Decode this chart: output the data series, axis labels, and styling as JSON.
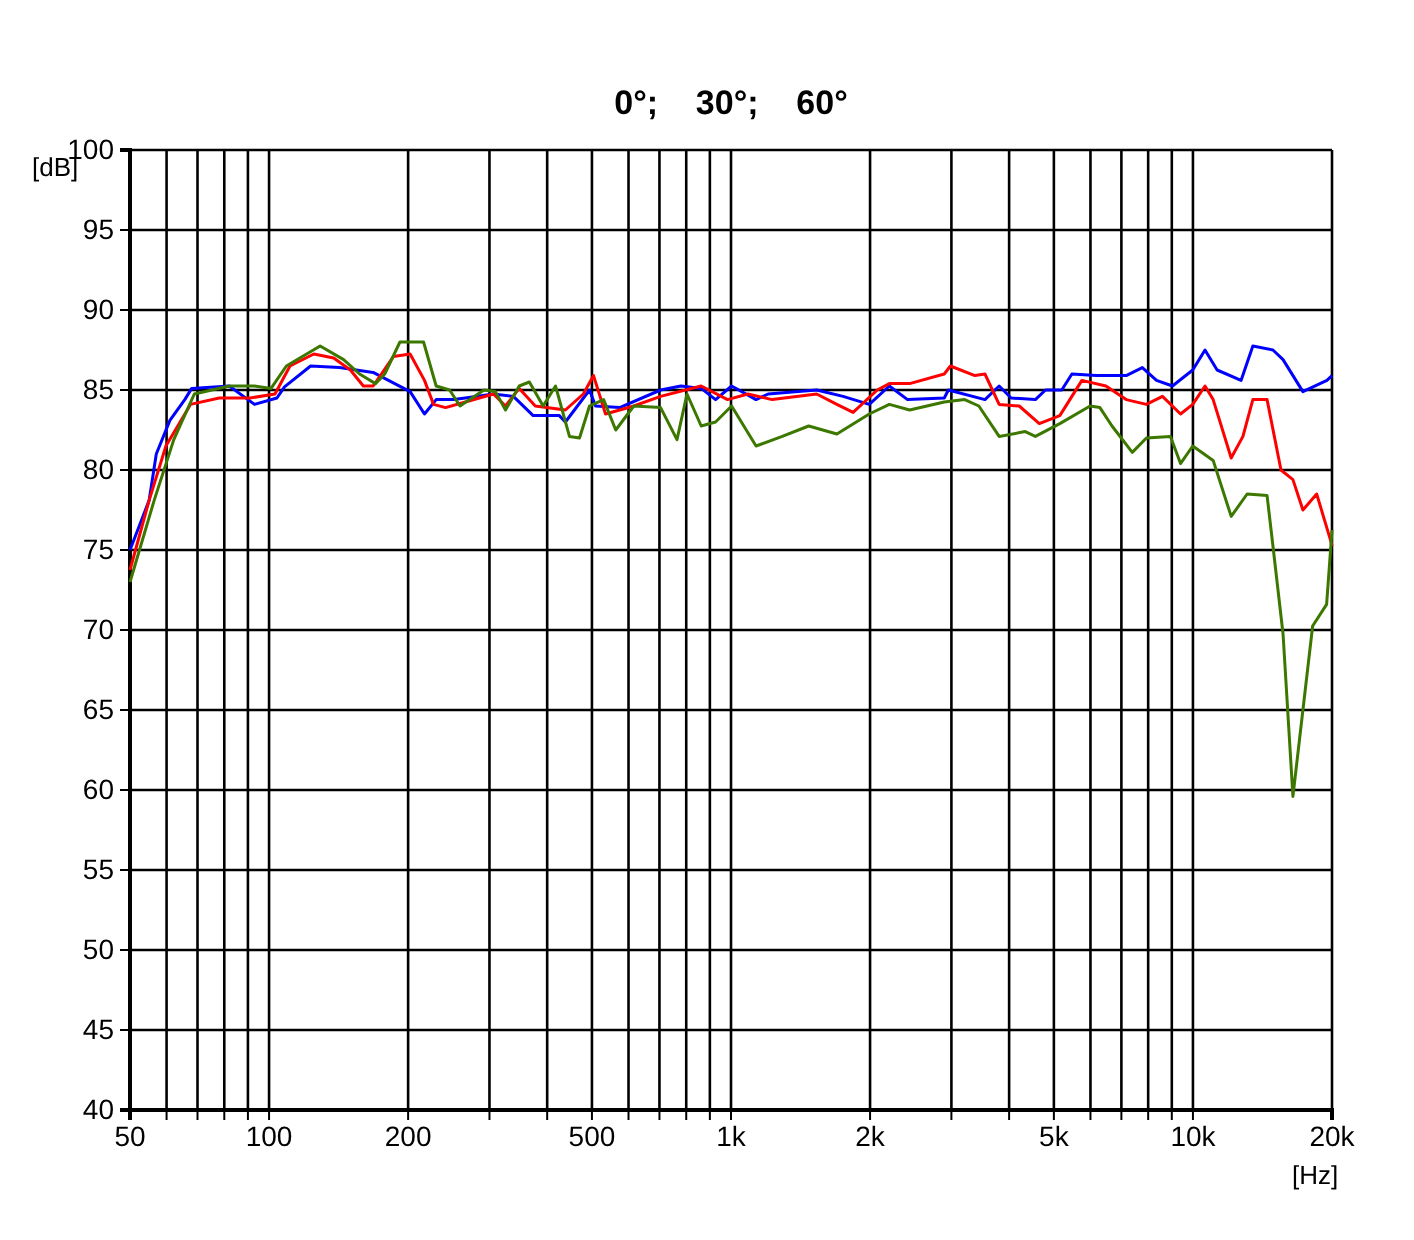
{
  "chart_data": {
    "type": "line",
    "title": "0°;    30°;    60°",
    "xlabel": "[Hz]",
    "ylabel": "[dB]",
    "log": "x",
    "grid": true,
    "xlim": [
      50,
      20000
    ],
    "ylim": [
      40,
      100
    ],
    "xticks": [
      50,
      {
        "value": 60,
        "label": null
      },
      {
        "value": 70,
        "label": null
      },
      {
        "value": 80,
        "label": null
      },
      {
        "value": 90,
        "label": null
      },
      100,
      200,
      {
        "value": 300,
        "label": null
      },
      {
        "value": 400,
        "label": null
      },
      500,
      {
        "value": 600,
        "label": null
      },
      {
        "value": 700,
        "label": null
      },
      {
        "value": 800,
        "label": null
      },
      {
        "value": 900,
        "label": null
      },
      {
        "value": 1000,
        "label": "1k"
      },
      {
        "value": 2000,
        "label": "2k"
      },
      {
        "value": 3000,
        "label": null
      },
      {
        "value": 4000,
        "label": null
      },
      {
        "value": 5000,
        "label": "5k"
      },
      {
        "value": 6000,
        "label": null
      },
      {
        "value": 7000,
        "label": null
      },
      {
        "value": 8000,
        "label": null
      },
      {
        "value": 9000,
        "label": null
      },
      {
        "value": 10000,
        "label": "10k"
      },
      {
        "value": 20000,
        "label": "20k"
      }
    ],
    "yticks": [
      40,
      45,
      50,
      55,
      60,
      65,
      70,
      75,
      80,
      85,
      90,
      95,
      100
    ],
    "series": [
      {
        "color": "#0000ff",
        "x": [
          50,
          55,
          57,
          61,
          65.7,
          68,
          82,
          93,
          104,
          108,
          123,
          142,
          168,
          202,
          217,
          230,
          251,
          266,
          306,
          338,
          373,
          425,
          438,
          494,
          509,
          574,
          704,
          779,
          862,
          926,
          1003,
          1133,
          1203,
          1533,
          1748,
          1992,
          2202,
          2411,
          2895,
          2955,
          3546,
          3806,
          4040,
          4559,
          4795,
          5200,
          5470,
          6170,
          6680,
          7170,
          7770,
          8340,
          9030,
          9990,
          10620,
          11280,
          12710,
          13480,
          14900,
          15670,
          17300,
          19500,
          20000
        ],
        "values": [
          75,
          78.1,
          81,
          83.1,
          84.4,
          85.1,
          85.25,
          84.1,
          84.5,
          85.2,
          86.5,
          86.4,
          86.1,
          84.9,
          83.5,
          84.4,
          84.4,
          84.5,
          84.75,
          84.6,
          83.4,
          83.4,
          83,
          85,
          84,
          83.9,
          85,
          85.25,
          85.1,
          84.4,
          85.25,
          84.4,
          84.75,
          85,
          84.6,
          84.1,
          85.25,
          84.4,
          84.5,
          85,
          84.4,
          85.25,
          84.5,
          84.4,
          85,
          85,
          86,
          85.9,
          85.9,
          85.9,
          86.4,
          85.6,
          85.25,
          86.25,
          87.5,
          86.25,
          85.6,
          87.75,
          87.5,
          86.9,
          84.9,
          85.6,
          85.9
        ]
      },
      {
        "color": "#ff0000",
        "x": [
          50,
          55,
          59.8,
          67.6,
          78,
          91,
          103,
          111,
          125,
          138,
          150,
          160,
          168,
          186,
          202,
          217,
          227,
          241,
          266,
          306,
          325,
          348,
          377,
          438,
          479,
          504,
          535,
          616,
          704,
          862,
          983,
          1088,
          1228,
          1533,
          1695,
          1838,
          2073,
          2202,
          2436,
          2895,
          2985,
          3372,
          3546,
          3806,
          4206,
          4650,
          5150,
          5750,
          6480,
          7170,
          7930,
          8590,
          9400,
          9990,
          10620,
          11060,
          12100,
          12830,
          13480,
          14470,
          15510,
          16460,
          17300,
          18530,
          19860,
          20000
        ],
        "values": [
          73.75,
          78.1,
          81.5,
          84.1,
          84.5,
          84.5,
          84.75,
          86.5,
          87.25,
          87,
          86.25,
          85.25,
          85.25,
          87.1,
          87.25,
          85.6,
          84.1,
          83.9,
          84.25,
          84.75,
          84,
          85.1,
          84,
          83.75,
          84.75,
          85.9,
          83.5,
          84,
          84.6,
          85.25,
          84.4,
          84.75,
          84.4,
          84.75,
          84.1,
          83.6,
          85,
          85.4,
          85.4,
          86,
          86.5,
          85.9,
          86,
          84.1,
          84,
          82.9,
          83.4,
          85.6,
          85.25,
          84.4,
          84.1,
          84.6,
          83.5,
          84.1,
          85.25,
          84.4,
          80.75,
          82.1,
          84.4,
          84.4,
          80,
          79.4,
          77.5,
          78.5,
          75.6,
          75.25
        ]
      },
      {
        "color": "#3c7800",
        "x": [
          50,
          56.4,
          62.2,
          68.9,
          82,
          93,
          101,
          109,
          129,
          145,
          157,
          170,
          178,
          192,
          216,
          230,
          246,
          259,
          292,
          309,
          325,
          348,
          366,
          392,
          417,
          447,
          470,
          494,
          530,
          563,
          616,
          704,
          764,
          803,
          862,
          926,
          1003,
          1133,
          1291,
          1473,
          1695,
          1992,
          2202,
          2436,
          2895,
          3206,
          3440,
          3806,
          4335,
          4559,
          5150,
          5990,
          6290,
          6680,
          7390,
          7930,
          8940,
          9400,
          9990,
          11060,
          12100,
          13100,
          14470,
          14900,
          15670,
          16460,
          18160,
          19470,
          20000
        ],
        "values": [
          73,
          78.1,
          81.9,
          84.75,
          85.25,
          85.25,
          85.1,
          86.5,
          87.75,
          86.9,
          86,
          85.4,
          86,
          88,
          88,
          85.25,
          85,
          84,
          85,
          84.9,
          83.75,
          85.25,
          85.5,
          84,
          85.25,
          82.1,
          82,
          84,
          84.4,
          82.5,
          84,
          83.9,
          81.9,
          84.75,
          82.75,
          83,
          84,
          81.5,
          82.1,
          82.75,
          82.25,
          83.5,
          84.1,
          83.75,
          84.25,
          84.4,
          84,
          82.1,
          82.4,
          82.1,
          82.9,
          84,
          83.9,
          82.75,
          81.1,
          82,
          82.1,
          80.4,
          81.5,
          80.6,
          77.1,
          78.5,
          78.4,
          75.25,
          69.75,
          59.6,
          70.25,
          71.6,
          76.25
        ]
      }
    ]
  }
}
